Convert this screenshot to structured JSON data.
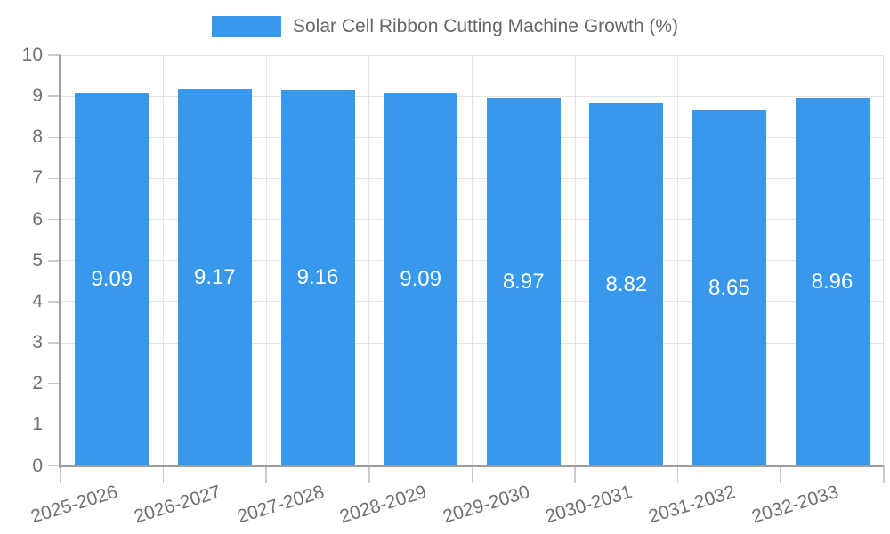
{
  "chart_data": {
    "type": "bar",
    "title": "Solar Cell Ribbon Cutting Machine Growth (%)",
    "categories": [
      "2025-2026",
      "2026-2027",
      "2027-2028",
      "2028-2029",
      "2029-2030",
      "2030-2031",
      "2031-2032",
      "2032-2033"
    ],
    "values": [
      9.09,
      9.17,
      9.16,
      9.09,
      8.97,
      8.82,
      8.65,
      8.96
    ],
    "value_labels": [
      "9.09",
      "9.17",
      "9.16",
      "9.09",
      "8.97",
      "8.82",
      "8.65",
      "8.96"
    ],
    "xlabel": "",
    "ylabel": "",
    "ylim": [
      0,
      10
    ],
    "ytick_step": 1,
    "yticks": [
      "0",
      "1",
      "2",
      "3",
      "4",
      "5",
      "6",
      "7",
      "8",
      "9",
      "10"
    ],
    "grid": "on",
    "legend_position": "top"
  },
  "legend": {
    "label": "Solar Cell Ribbon Cutting Machine Growth (%)"
  },
  "colors": {
    "bar": "#3898EC",
    "bar_label_text": "#FFFFFF",
    "axis_line": "#9E9E9E",
    "grid_line": "#E4E4E4",
    "tick_mark": "#CBCBCB",
    "axis_text": "#707070",
    "legend_text": "#666666",
    "background": "#FFFFFF"
  }
}
